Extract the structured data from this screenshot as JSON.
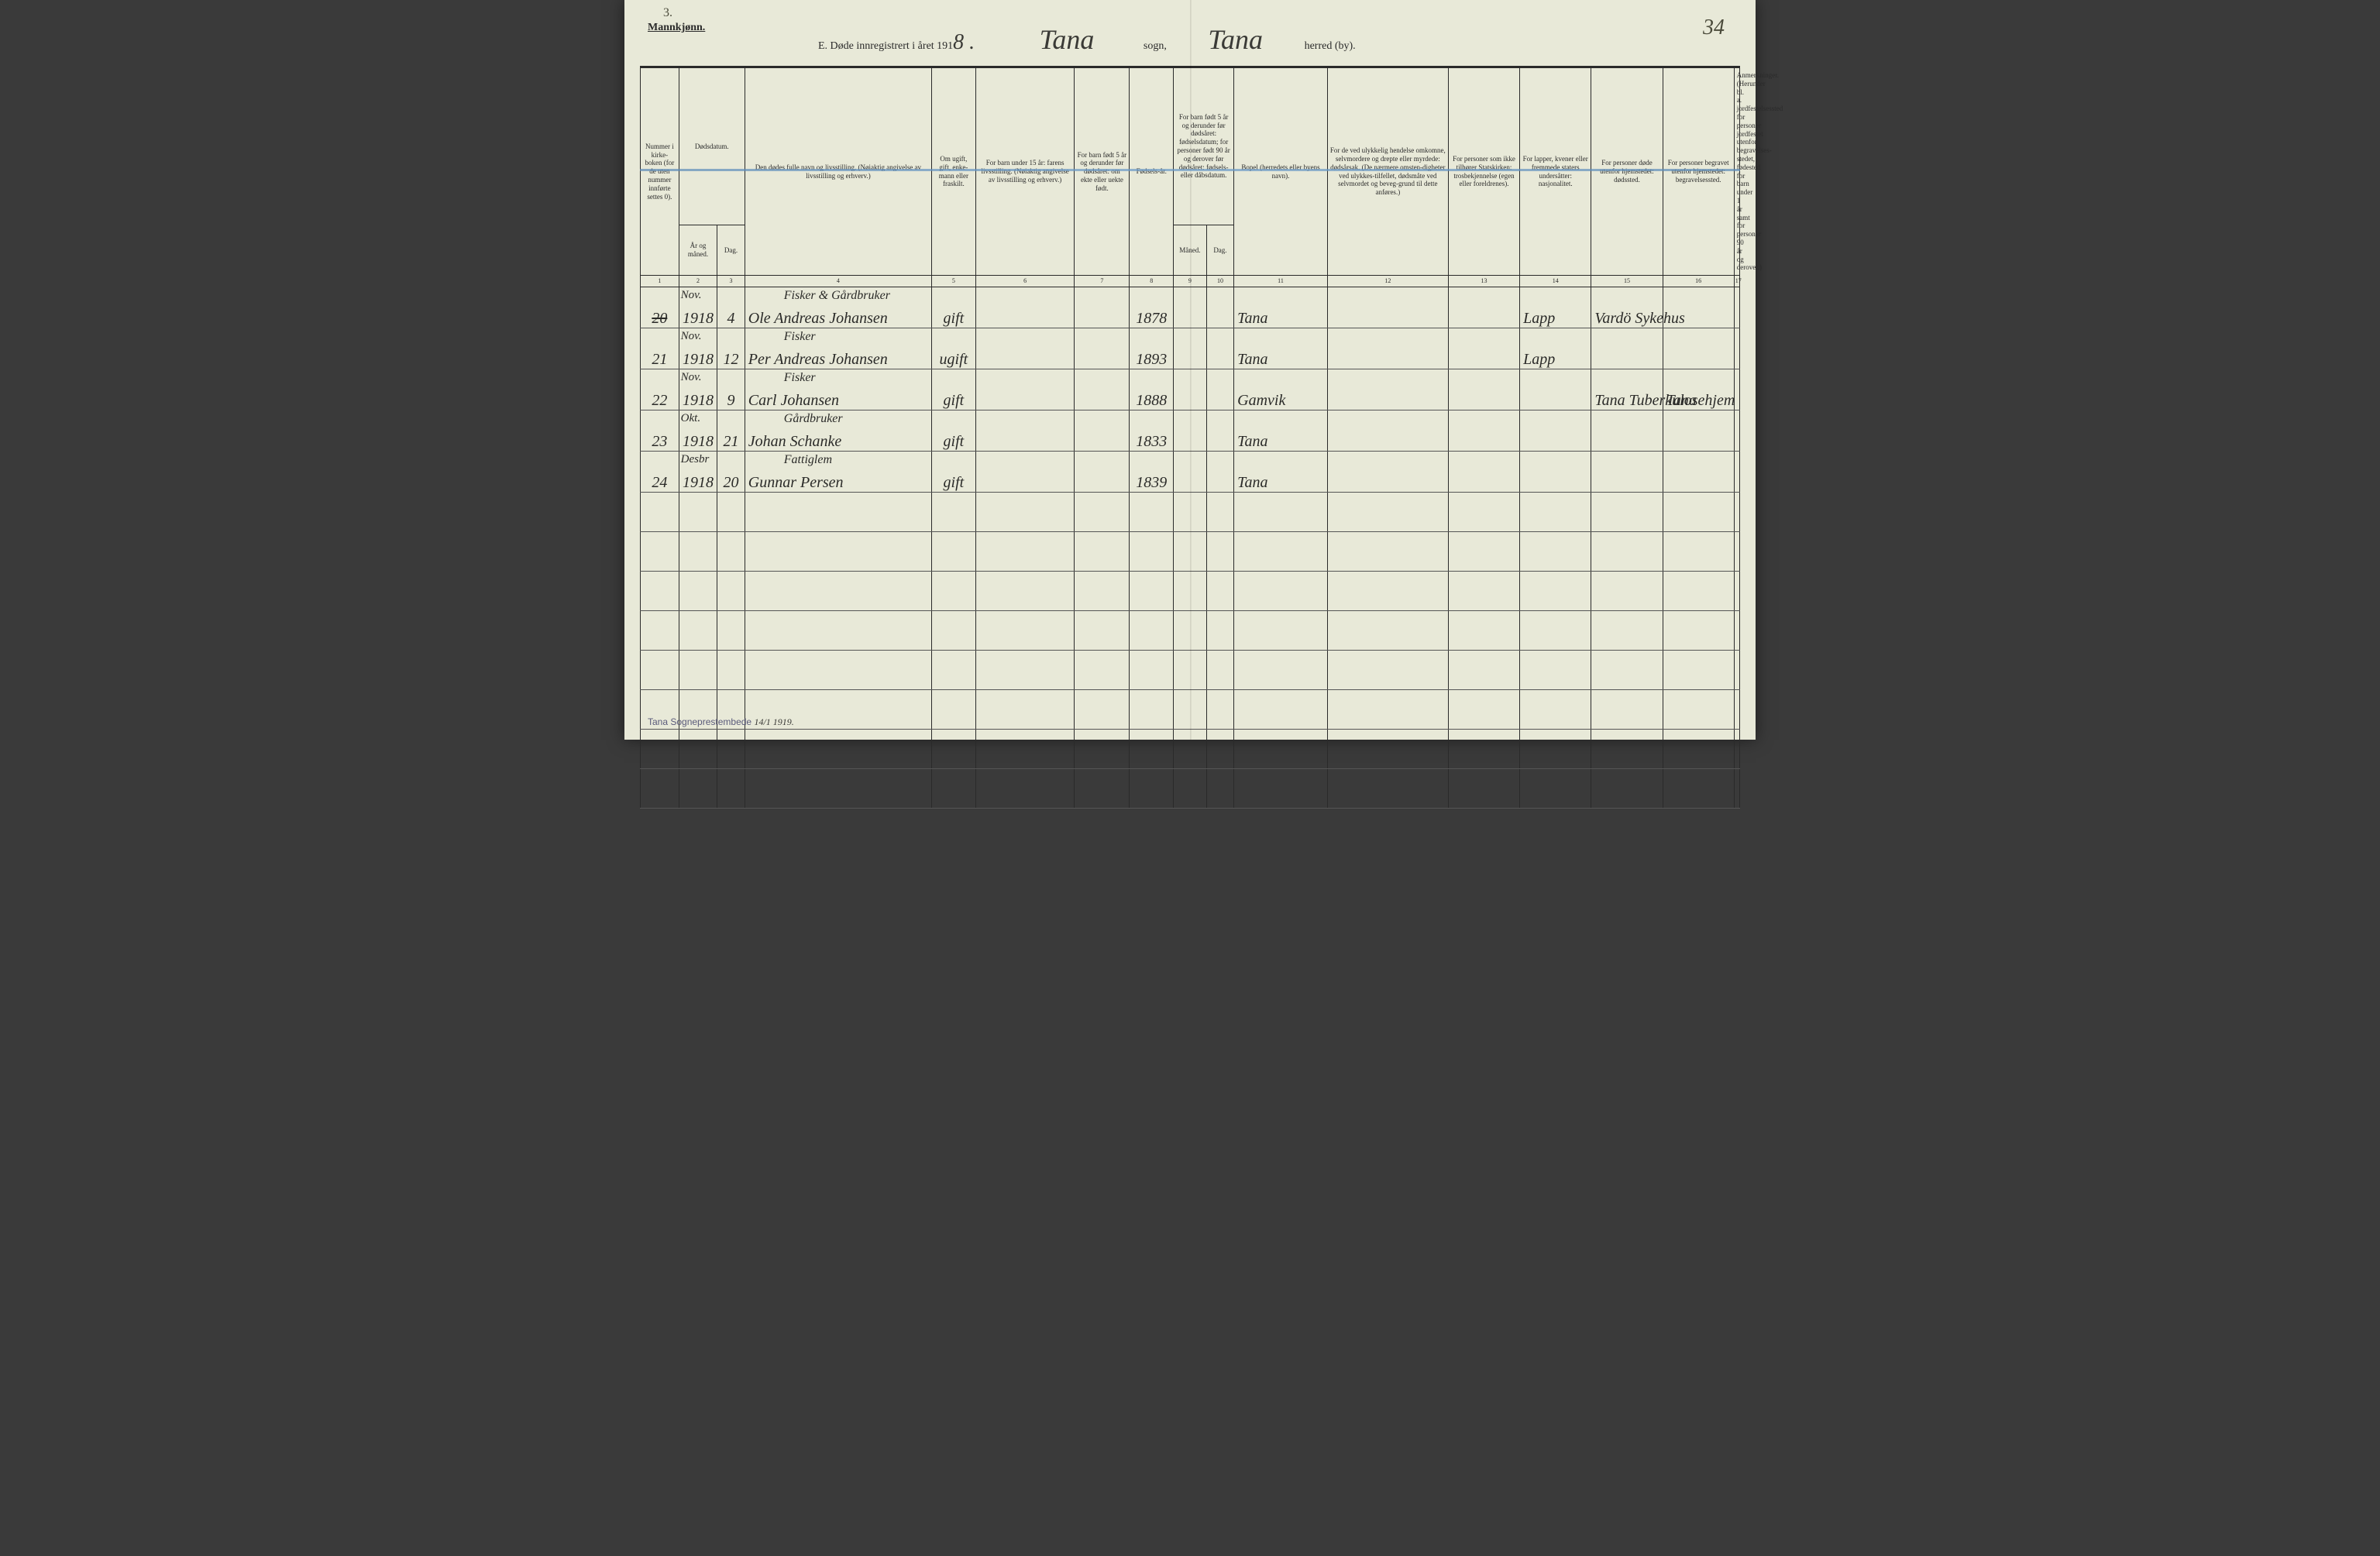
{
  "header": {
    "page_num_top": "3.",
    "gender_label": "Mannkjønn.",
    "title_prefix": "E. Døde innregistrert i året 191",
    "year_suffix": "8 .",
    "sogn_label": "sogn,",
    "sogn_value": "Tana",
    "herred_label": "herred (by).",
    "herred_value": "Tana",
    "page_num_right": "34"
  },
  "columns": {
    "c1": "Nummer i kirke-boken (for de uten nummer innførte settes 0).",
    "c2_top": "Dødsdatum.",
    "c2": "År og måned.",
    "c3": "Dag.",
    "c4": "Den dødes fulle navn og livsstilling. (Nøiaktig angivelse av livsstilling og erhverv.)",
    "c5": "Om ugift, gift, enke-mann eller fraskilt.",
    "c6": "For barn under 15 år: farens livsstilling. (Nøiaktig angivelse av livsstilling og erhverv.)",
    "c7": "For barn født 5 år og derunder før dødsåret: om ekte eller uekte født.",
    "c8": "Fødsels-år.",
    "c9_top": "For barn født 5 år og derunder før dødsåret: fødselsdatum; for personer født 90 år og derover før dødsåret: fødsels- eller dåbsdatum.",
    "c9": "Måned.",
    "c10": "Dag.",
    "c11": "Bopel (herredets eller byens navn).",
    "c12": "For de ved ulykkelig hendelse omkomne, selvmordere og drepte eller myrdede: dødsårsak. (De nærmere omsten-digheter ved ulykkes-tilfellet, dødsmåte ved selvmordet og beveg-grund til dette anføres.)",
    "c13": "For personer som ikke tilhører Statskirken: trosbekjennelse (egen eller foreldrenes).",
    "c14": "For lapper, kvener eller fremmede staters undersåtter: nasjonalitet.",
    "c15": "For personer døde utenfor hjemstedet: dødssted.",
    "c16": "For personer begravet utenfor hjemstedet: begravelsessted.",
    "c17": "Anmerkninger. (Herunder bl. a. jordfestelsessted for personer jordfestet utenfor begravelses-stedet, fødested for barn under 1 år samt for personer 90 år og derover.)"
  },
  "colnums": [
    "1",
    "2",
    "3",
    "4",
    "5",
    "6",
    "7",
    "8",
    "9",
    "10",
    "11",
    "12",
    "13",
    "14",
    "15",
    "16",
    "17"
  ],
  "rows": [
    {
      "num": "20",
      "num_struck": true,
      "year_month": "Nov. 1918",
      "day": "4",
      "occupation": "Fisker & Gårdbruker",
      "name": "Ole Andreas Johansen",
      "marital": "gift",
      "birth_year": "1878",
      "residence": "Tana",
      "nationality": "Lapp",
      "death_place": "Vardö Sykehus"
    },
    {
      "num": "21",
      "year_month": "Nov. 1918",
      "day": "12",
      "occupation": "Fisker",
      "name": "Per Andreas Johansen",
      "marital": "ugift",
      "birth_year": "1893",
      "residence": "Tana",
      "nationality": "Lapp",
      "death_place": ""
    },
    {
      "num": "22",
      "year_month": "Nov. 1918",
      "day": "9",
      "occupation": "Fisker",
      "name": "Carl Johansen",
      "marital": "gift",
      "birth_year": "1888",
      "residence": "Gamvik",
      "nationality": "",
      "death_place": "Tana Tuberkulosehjem",
      "burial_place": "Tana"
    },
    {
      "num": "23",
      "year_month": "Okt. 1918",
      "day": "21",
      "occupation": "Gårdbruker",
      "name": "Johan Schanke",
      "marital": "gift",
      "birth_year": "1833",
      "residence": "Tana",
      "nationality": "",
      "death_place": ""
    },
    {
      "num": "24",
      "year_month": "Desbr 1918",
      "day": "20",
      "occupation": "Fattiglem",
      "name": "Gunnar Persen",
      "marital": "gift",
      "birth_year": "1839",
      "residence": "Tana",
      "nationality": "",
      "death_place": ""
    }
  ],
  "empty_row_count": 8,
  "footer": {
    "stamp": "Tana Sogneprestembede",
    "date": "14/1 1919."
  },
  "col_widths_pct": [
    3.5,
    3.5,
    2.5,
    17,
    4,
    9,
    5,
    4,
    3,
    2.5,
    8.5,
    11,
    6.5,
    6.5,
    6.5,
    6.5,
    0
  ]
}
